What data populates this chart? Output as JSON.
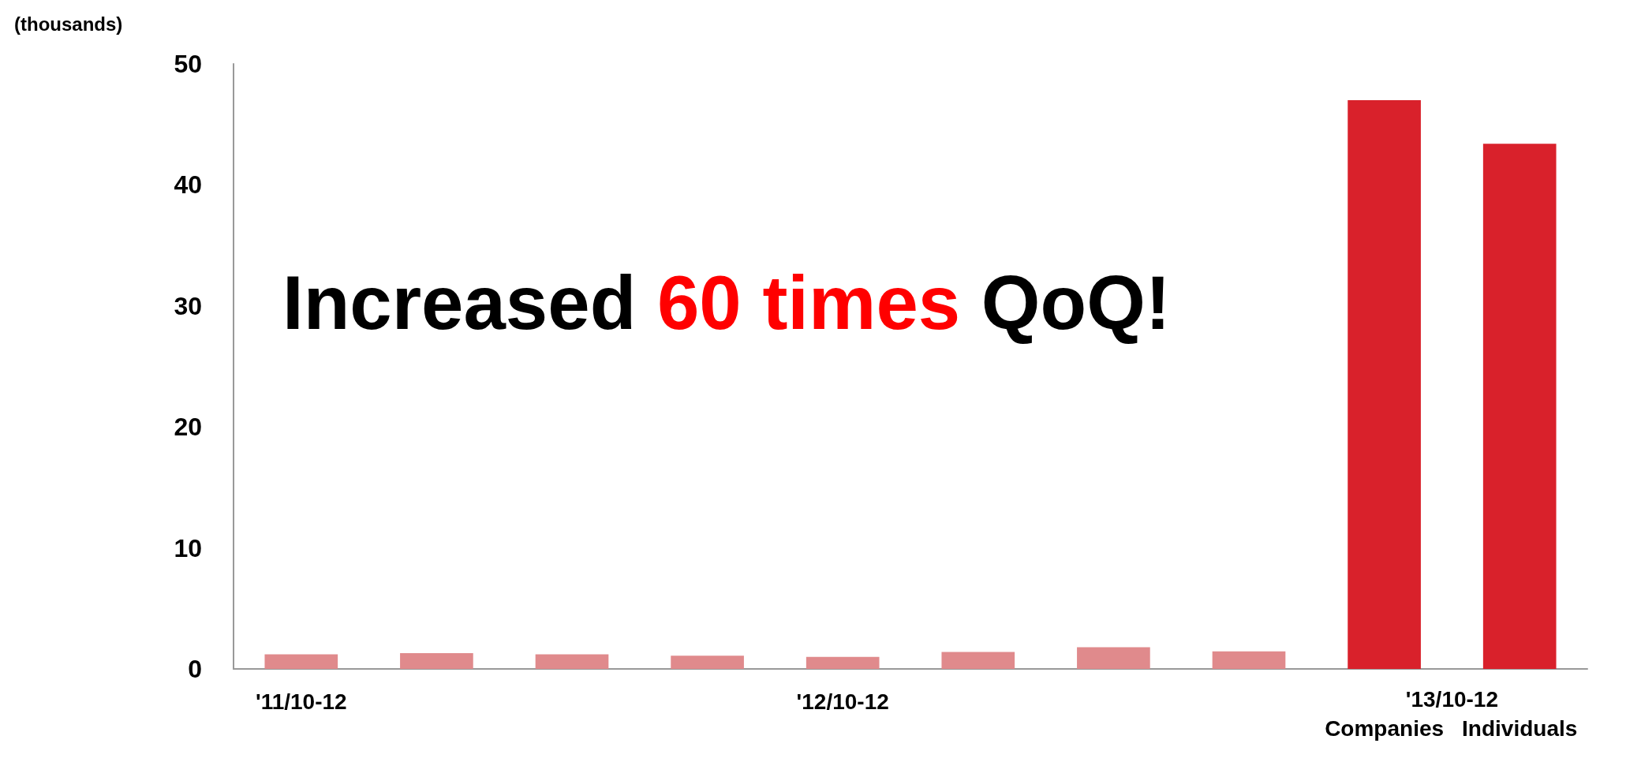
{
  "chart_data": {
    "type": "bar",
    "ylabel": "(thousands)",
    "categories": [
      "'11/10-12",
      null,
      null,
      null,
      "'12/10-12",
      null,
      null,
      null,
      "Companies",
      "Individuals"
    ],
    "values": [
      1.2,
      1.3,
      1.2,
      1.1,
      1.0,
      1.4,
      1.8,
      1.45,
      47.0,
      43.4
    ],
    "colors": [
      "#e08a8c",
      "#e08a8c",
      "#e08a8c",
      "#e08a8c",
      "#e08a8c",
      "#e08a8c",
      "#e08a8c",
      "#e08a8c",
      "#d9212b",
      "#d9212b"
    ],
    "ylim": [
      0,
      50
    ],
    "yticks": [
      0,
      10,
      20,
      30,
      40,
      50
    ],
    "annotations": [
      "Increased",
      "60 times",
      "QoQ!",
      "'13/10-12"
    ]
  }
}
